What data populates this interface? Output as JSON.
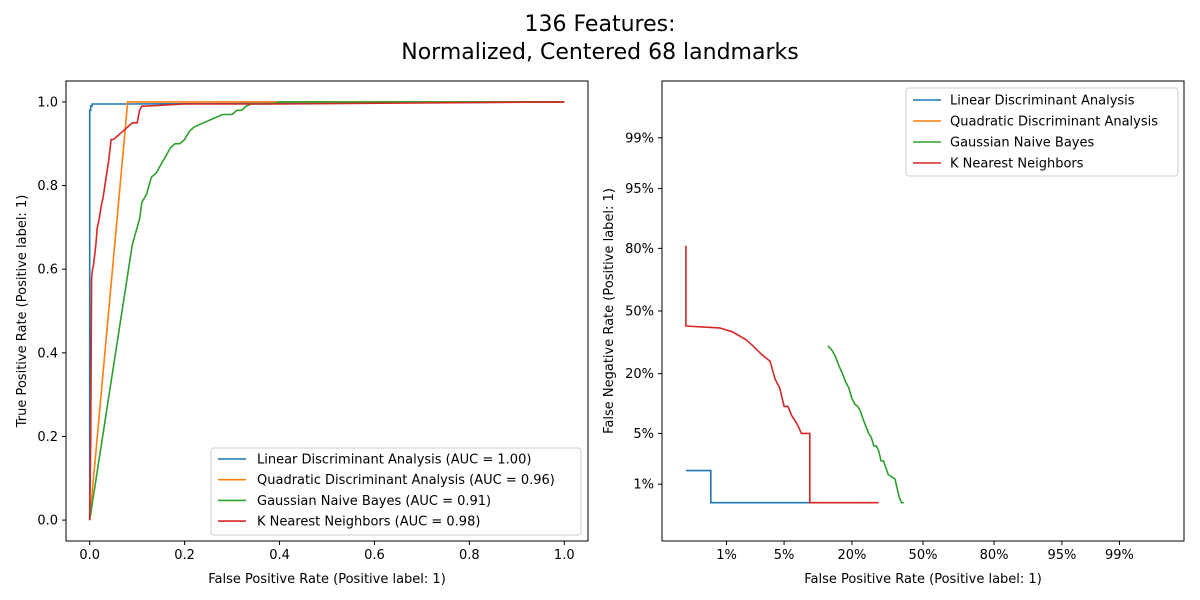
{
  "figure": {
    "title_line1": "136 Features:",
    "title_line2": "Normalized, Centered 68 landmarks"
  },
  "chart_data": [
    {
      "type": "line",
      "subtype": "roc",
      "xlabel": "False Positive Rate (Positive label: 1)",
      "ylabel": "True Positive Rate (Positive label: 1)",
      "xlim": [
        -0.05,
        1.05
      ],
      "ylim": [
        -0.05,
        1.05
      ],
      "xticks": [
        "0.0",
        "0.2",
        "0.4",
        "0.6",
        "0.8",
        "1.0"
      ],
      "yticks": [
        "0.0",
        "0.2",
        "0.4",
        "0.6",
        "0.8",
        "1.0"
      ],
      "legend_position": "lower-right",
      "series": [
        {
          "name": "Linear Discriminant Analysis (AUC = 1.00)",
          "color": "#1f77b4",
          "x": [
            0,
            0,
            0.002,
            0.002,
            0.005,
            0.005,
            0.08,
            1.0
          ],
          "y": [
            0,
            0.98,
            0.98,
            0.99,
            0.99,
            0.995,
            0.995,
            1.0
          ]
        },
        {
          "name": "Quadratic Discriminant Analysis (AUC = 0.96)",
          "color": "#ff7f0e",
          "x": [
            0,
            0.08,
            0.08,
            0.4,
            0.4,
            1.0
          ],
          "y": [
            0,
            1.0,
            1.0,
            1.0,
            1.0,
            1.0
          ]
        },
        {
          "name": "Gaussian Naive Bayes (AUC = 0.91)",
          "color": "#2ca02c",
          "x": [
            0,
            0.09,
            0.095,
            0.1,
            0.105,
            0.11,
            0.115,
            0.12,
            0.125,
            0.13,
            0.14,
            0.15,
            0.155,
            0.16,
            0.165,
            0.17,
            0.18,
            0.19,
            0.2,
            0.21,
            0.22,
            0.24,
            0.26,
            0.28,
            0.3,
            0.31,
            0.32,
            0.33,
            0.34,
            0.38,
            0.4,
            1.0
          ],
          "y": [
            0,
            0.66,
            0.68,
            0.7,
            0.72,
            0.76,
            0.77,
            0.78,
            0.8,
            0.82,
            0.83,
            0.85,
            0.86,
            0.87,
            0.88,
            0.89,
            0.9,
            0.9,
            0.91,
            0.93,
            0.94,
            0.95,
            0.96,
            0.97,
            0.97,
            0.98,
            0.98,
            0.99,
            0.995,
            0.995,
            1.0,
            1.0
          ]
        },
        {
          "name": "K Nearest Neighbors (AUC = 0.98)",
          "color": "#d62728",
          "x": [
            0,
            0.002,
            0.004,
            0.006,
            0.008,
            0.01,
            0.013,
            0.016,
            0.02,
            0.024,
            0.028,
            0.032,
            0.036,
            0.04,
            0.045,
            0.05,
            0.06,
            0.07,
            0.08,
            0.09,
            0.1,
            0.105,
            0.11,
            0.12,
            0.2,
            0.4,
            1.0
          ],
          "y": [
            0,
            0.19,
            0.58,
            0.6,
            0.61,
            0.63,
            0.66,
            0.7,
            0.72,
            0.75,
            0.77,
            0.8,
            0.83,
            0.86,
            0.91,
            0.91,
            0.92,
            0.93,
            0.94,
            0.95,
            0.95,
            0.98,
            0.99,
            0.99,
            0.995,
            0.995,
            1.0
          ]
        }
      ]
    },
    {
      "type": "line",
      "subtype": "det",
      "xlabel": "False Positive Rate (Positive label: 1)",
      "ylabel": "False Negative Rate (Positive label: 1)",
      "xticks": [
        "1%",
        "5%",
        "20%",
        "50%",
        "80%",
        "95%",
        "99%"
      ],
      "xtick_values": [
        0.01,
        0.05,
        0.2,
        0.5,
        0.8,
        0.95,
        0.99
      ],
      "yticks": [
        "1%",
        "5%",
        "20%",
        "50%",
        "80%",
        "95%",
        "99%"
      ],
      "ytick_values": [
        0.01,
        0.05,
        0.2,
        0.5,
        0.8,
        0.95,
        0.99
      ],
      "scale": "probit",
      "legend_position": "upper-right",
      "series": [
        {
          "name": "Linear Discriminant Analysis",
          "color": "#1f77b4",
          "x": [
            0.0025,
            0.0025,
            0.006,
            0.006,
            0.09,
            0.1
          ],
          "y": [
            0.016,
            0.016,
            0.016,
            0.005,
            0.005,
            0.005
          ]
        },
        {
          "name": "Quadratic Discriminant Analysis",
          "color": "#ff7f0e",
          "x": [],
          "y": []
        },
        {
          "name": "Gaussian Naive Bayes",
          "color": "#2ca02c",
          "x": [
            0.13,
            0.14,
            0.15,
            0.16,
            0.17,
            0.18,
            0.19,
            0.2,
            0.21,
            0.22,
            0.23,
            0.24,
            0.25,
            0.26,
            0.27,
            0.28,
            0.29,
            0.3,
            0.31,
            0.32,
            0.34,
            0.37,
            0.39,
            0.4,
            0.41
          ],
          "y": [
            0.32,
            0.3,
            0.27,
            0.23,
            0.2,
            0.17,
            0.15,
            0.12,
            0.105,
            0.1,
            0.088,
            0.072,
            0.06,
            0.05,
            0.045,
            0.035,
            0.035,
            0.03,
            0.022,
            0.022,
            0.014,
            0.012,
            0.006,
            0.005,
            0.005
          ]
        },
        {
          "name": "K Nearest Neighbors",
          "color": "#d62728",
          "x": [
            0.0025,
            0.0025,
            0.0025,
            0.008,
            0.012,
            0.018,
            0.022,
            0.028,
            0.035,
            0.04,
            0.045,
            0.05,
            0.055,
            0.06,
            0.065,
            0.07,
            0.075,
            0.08,
            0.09,
            0.09,
            0.09,
            0.3
          ],
          "y": [
            0.81,
            0.81,
            0.42,
            0.41,
            0.39,
            0.35,
            0.32,
            0.28,
            0.25,
            0.18,
            0.15,
            0.1,
            0.1,
            0.08,
            0.07,
            0.06,
            0.05,
            0.05,
            0.05,
            0.02,
            0.005,
            0.005
          ]
        }
      ]
    }
  ]
}
